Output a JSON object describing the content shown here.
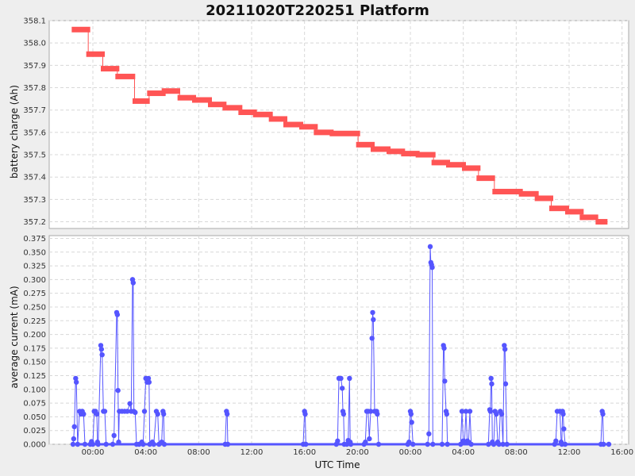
{
  "chart_data": [
    {
      "type": "line",
      "title": "20211020T220251 Platform",
      "xlabel": "",
      "ylabel": "battery charge (Ah)",
      "ylim": [
        357.17,
        358.1
      ],
      "yticks": [
        "357.2",
        "357.3",
        "357.4",
        "357.5",
        "357.6",
        "357.7",
        "357.8",
        "357.9",
        "358.0",
        "358.1"
      ],
      "grid": true,
      "color": "#ff5555",
      "series": [
        {
          "segments": [
            {
              "x0": -1.6,
              "x1": -0.2,
              "y": 358.06
            },
            {
              "x0": -0.5,
              "x1": 0.9,
              "y": 357.95
            },
            {
              "x0": 0.6,
              "x1": 2.0,
              "y": 357.885
            },
            {
              "x0": 1.7,
              "x1": 3.2,
              "y": 357.85
            },
            {
              "x0": 3.0,
              "x1": 4.3,
              "y": 357.74
            },
            {
              "x0": 4.1,
              "x1": 5.5,
              "y": 357.775
            },
            {
              "x0": 5.2,
              "x1": 6.6,
              "y": 357.785
            },
            {
              "x0": 6.4,
              "x1": 7.8,
              "y": 357.755
            },
            {
              "x0": 7.5,
              "x1": 9.0,
              "y": 357.745
            },
            {
              "x0": 8.7,
              "x1": 10.1,
              "y": 357.725
            },
            {
              "x0": 9.8,
              "x1": 11.3,
              "y": 357.71
            },
            {
              "x0": 11.0,
              "x1": 12.4,
              "y": 357.69
            },
            {
              "x0": 12.1,
              "x1": 13.6,
              "y": 357.68
            },
            {
              "x0": 13.3,
              "x1": 14.7,
              "y": 357.66
            },
            {
              "x0": 14.4,
              "x1": 15.9,
              "y": 357.635
            },
            {
              "x0": 15.6,
              "x1": 17.0,
              "y": 357.625
            },
            {
              "x0": 16.7,
              "x1": 18.2,
              "y": 357.6
            },
            {
              "x0": 17.9,
              "x1": 20.2,
              "y": 357.595
            },
            {
              "x0": 19.9,
              "x1": 21.3,
              "y": 357.545
            },
            {
              "x0": 21.0,
              "x1": 22.5,
              "y": 357.525
            },
            {
              "x0": 22.2,
              "x1": 23.6,
              "y": 357.515
            },
            {
              "x0": 23.3,
              "x1": 24.7,
              "y": 357.505
            },
            {
              "x0": 24.4,
              "x1": 25.9,
              "y": 357.5
            },
            {
              "x0": 25.6,
              "x1": 27.0,
              "y": 357.465
            },
            {
              "x0": 26.7,
              "x1": 28.2,
              "y": 357.455
            },
            {
              "x0": 27.9,
              "x1": 29.3,
              "y": 357.44
            },
            {
              "x0": 29.0,
              "x1": 30.4,
              "y": 357.395
            },
            {
              "x0": 30.2,
              "x1": 32.5,
              "y": 357.335
            },
            {
              "x0": 32.2,
              "x1": 33.7,
              "y": 357.325
            },
            {
              "x0": 33.4,
              "x1": 34.8,
              "y": 357.305
            },
            {
              "x0": 34.5,
              "x1": 36.0,
              "y": 357.26
            },
            {
              "x0": 35.7,
              "x1": 37.1,
              "y": 357.245
            },
            {
              "x0": 36.8,
              "x1": 38.2,
              "y": 357.22
            },
            {
              "x0": 38.0,
              "x1": 38.9,
              "y": 357.2
            }
          ]
        }
      ]
    },
    {
      "type": "line",
      "title": "",
      "xlabel": "UTC Time",
      "ylabel": "average current (mA)",
      "ylim": [
        0,
        0.38
      ],
      "yticks": [
        "0.000",
        "0.025",
        "0.050",
        "0.075",
        "0.100",
        "0.125",
        "0.150",
        "0.175",
        "0.200",
        "0.225",
        "0.250",
        "0.275",
        "0.300",
        "0.325",
        "0.350",
        "0.375"
      ],
      "xlim": [
        -3.3,
        40.5
      ],
      "xticks": [
        "00:00",
        "04:00",
        "08:00",
        "12:00",
        "16:00",
        "20:00",
        "00:00",
        "04:00",
        "08:00",
        "12:00",
        "16:00"
      ],
      "grid": true,
      "color": "#5555ff",
      "series": [
        {
          "points": [
            [
              -1.5,
              0
            ],
            [
              -1.45,
              0.01
            ],
            [
              -1.4,
              0.032
            ],
            [
              -1.3,
              0.12
            ],
            [
              -1.25,
              0.113
            ],
            [
              -1.15,
              0
            ],
            [
              -1.0,
              0.06
            ],
            [
              -0.9,
              0.055
            ],
            [
              -0.8,
              0.06
            ],
            [
              -0.7,
              0.055
            ],
            [
              -0.6,
              0
            ],
            [
              -0.2,
              0
            ],
            [
              -0.1,
              0.005
            ],
            [
              0.0,
              0
            ],
            [
              0.1,
              0.06
            ],
            [
              0.2,
              0.06
            ],
            [
              0.3,
              0.055
            ],
            [
              0.35,
              0.004
            ],
            [
              0.4,
              0
            ],
            [
              0.6,
              0.18
            ],
            [
              0.65,
              0.173
            ],
            [
              0.7,
              0.163
            ],
            [
              0.8,
              0.06
            ],
            [
              0.9,
              0.06
            ],
            [
              1.0,
              0
            ],
            [
              1.5,
              0
            ],
            [
              1.6,
              0.016
            ],
            [
              1.8,
              0.24
            ],
            [
              1.85,
              0.236
            ],
            [
              1.9,
              0.098
            ],
            [
              1.95,
              0.004
            ],
            [
              2.0,
              0.06
            ],
            [
              2.2,
              0.06
            ],
            [
              2.4,
              0.06
            ],
            [
              2.6,
              0.06
            ],
            [
              2.8,
              0.074
            ],
            [
              2.9,
              0.06
            ],
            [
              3.0,
              0.3
            ],
            [
              3.05,
              0.294
            ],
            [
              3.1,
              0.06
            ],
            [
              3.2,
              0.058
            ],
            [
              3.3,
              0
            ],
            [
              3.5,
              0
            ],
            [
              3.7,
              0.004
            ],
            [
              3.8,
              0
            ],
            [
              3.9,
              0.06
            ],
            [
              4.0,
              0.12
            ],
            [
              4.1,
              0.113
            ],
            [
              4.2,
              0.12
            ],
            [
              4.25,
              0.113
            ],
            [
              4.3,
              0
            ],
            [
              4.5,
              0.004
            ],
            [
              4.6,
              0
            ],
            [
              4.8,
              0.06
            ],
            [
              4.9,
              0.055
            ],
            [
              5.0,
              0
            ],
            [
              5.2,
              0.004
            ],
            [
              5.3,
              0.06
            ],
            [
              5.35,
              0.055
            ],
            [
              5.4,
              0
            ],
            [
              10.0,
              0
            ],
            [
              10.1,
              0.06
            ],
            [
              10.15,
              0.055
            ],
            [
              10.2,
              0
            ],
            [
              15.9,
              0
            ],
            [
              16.0,
              0.06
            ],
            [
              16.05,
              0.055
            ],
            [
              16.1,
              0
            ],
            [
              18.4,
              0
            ],
            [
              18.5,
              0.006
            ],
            [
              18.6,
              0.12
            ],
            [
              18.75,
              0.12
            ],
            [
              18.85,
              0.102
            ],
            [
              18.9,
              0.06
            ],
            [
              18.95,
              0.055
            ],
            [
              19.0,
              0
            ],
            [
              19.2,
              0
            ],
            [
              19.3,
              0.007
            ],
            [
              19.4,
              0.12
            ],
            [
              19.45,
              0.004
            ],
            [
              19.5,
              0
            ],
            [
              20.5,
              0
            ],
            [
              20.6,
              0.004
            ],
            [
              20.7,
              0.06
            ],
            [
              20.8,
              0.06
            ],
            [
              20.9,
              0.01
            ],
            [
              21.0,
              0.06
            ],
            [
              21.1,
              0.193
            ],
            [
              21.15,
              0.24
            ],
            [
              21.2,
              0.227
            ],
            [
              21.3,
              0.06
            ],
            [
              21.45,
              0.06
            ],
            [
              21.5,
              0.055
            ],
            [
              21.6,
              0
            ],
            [
              23.8,
              0
            ],
            [
              23.9,
              0.004
            ],
            [
              24.0,
              0.06
            ],
            [
              24.05,
              0.055
            ],
            [
              24.1,
              0.04
            ],
            [
              24.2,
              0
            ],
            [
              25.3,
              0
            ],
            [
              25.4,
              0.019
            ],
            [
              25.5,
              0.36
            ],
            [
              25.55,
              0.331
            ],
            [
              25.6,
              0.327
            ],
            [
              25.65,
              0.322
            ],
            [
              25.7,
              0
            ],
            [
              26.4,
              0
            ],
            [
              26.5,
              0.18
            ],
            [
              26.55,
              0.175
            ],
            [
              26.6,
              0.115
            ],
            [
              26.7,
              0.06
            ],
            [
              26.75,
              0.055
            ],
            [
              26.8,
              0
            ],
            [
              27.8,
              0
            ],
            [
              27.9,
              0.06
            ],
            [
              28.0,
              0.006
            ],
            [
              28.1,
              0.004
            ],
            [
              28.2,
              0.06
            ],
            [
              28.3,
              0.006
            ],
            [
              28.4,
              0.004
            ],
            [
              28.5,
              0.06
            ],
            [
              28.6,
              0
            ],
            [
              29.9,
              0
            ],
            [
              30.0,
              0.063
            ],
            [
              30.05,
              0.06
            ],
            [
              30.1,
              0.12
            ],
            [
              30.15,
              0.11
            ],
            [
              30.2,
              0.004
            ],
            [
              30.3,
              0
            ],
            [
              30.4,
              0.06
            ],
            [
              30.5,
              0.055
            ],
            [
              30.6,
              0.004
            ],
            [
              30.7,
              0
            ],
            [
              30.8,
              0.06
            ],
            [
              30.9,
              0.055
            ],
            [
              31.0,
              0
            ],
            [
              31.1,
              0.18
            ],
            [
              31.15,
              0.173
            ],
            [
              31.2,
              0.11
            ],
            [
              31.3,
              0
            ],
            [
              34.9,
              0
            ],
            [
              35.0,
              0.006
            ],
            [
              35.1,
              0.06
            ],
            [
              35.3,
              0.06
            ],
            [
              35.4,
              0.004
            ],
            [
              35.45,
              0
            ],
            [
              35.5,
              0.06
            ],
            [
              35.55,
              0.055
            ],
            [
              35.6,
              0.028
            ],
            [
              35.7,
              0
            ],
            [
              38.4,
              0
            ],
            [
              38.5,
              0.06
            ],
            [
              38.55,
              0.055
            ],
            [
              38.6,
              0
            ],
            [
              39.0,
              0
            ]
          ]
        }
      ]
    }
  ]
}
